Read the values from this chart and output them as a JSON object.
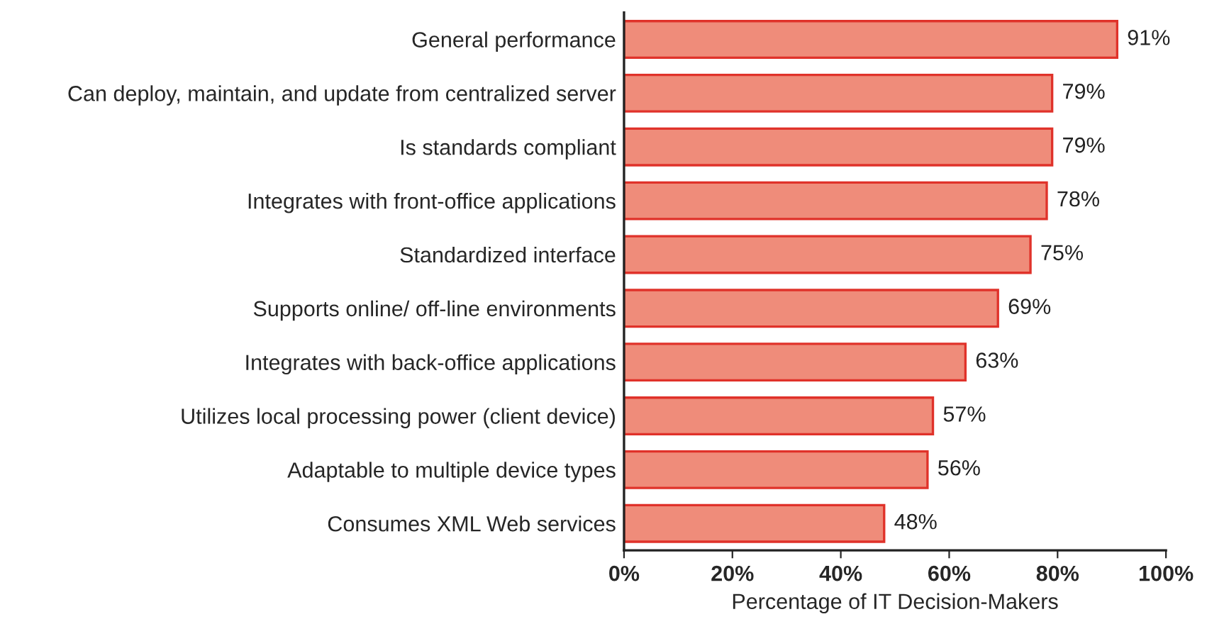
{
  "chart_data": {
    "type": "bar",
    "orientation": "horizontal",
    "xlabel": "Percentage of IT Decision-Makers",
    "categories": [
      "General performance",
      "Can deploy, maintain, and update from centralized server",
      "Is standards compliant",
      "Integrates with front-office applications",
      "Standardized interface",
      "Supports online/ off-line environments",
      "Integrates with back-office applications",
      "Utilizes local processing power (client device)",
      "Adaptable to multiple device types",
      "Consumes XML Web services"
    ],
    "values": [
      91,
      79,
      79,
      78,
      75,
      69,
      63,
      57,
      56,
      48
    ],
    "value_labels": [
      "91%",
      "79%",
      "79%",
      "78%",
      "75%",
      "69%",
      "63%",
      "57%",
      "56%",
      "48%"
    ],
    "color": "#ef8c7a",
    "xlim": [
      0,
      100
    ],
    "xticks": [
      {
        "value": 0,
        "label": "0%"
      },
      {
        "value": 20,
        "label": "20%"
      },
      {
        "value": 40,
        "label": "40%"
      },
      {
        "value": 60,
        "label": "60%"
      },
      {
        "value": 80,
        "label": "80%"
      },
      {
        "value": 100,
        "label": "100%"
      }
    ],
    "grid": false,
    "legend": false
  }
}
